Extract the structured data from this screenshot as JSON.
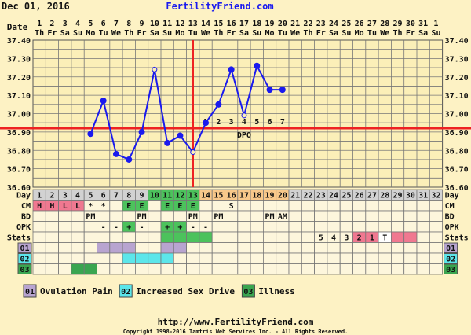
{
  "header": {
    "date": "Dec 01, 2016",
    "site": "FertilityFriend.com"
  },
  "footer": {
    "url": "http://www.FertilityFriend.com",
    "copyright": "Copyright 1998-2016 Tamtris Web Services Inc. - All Rights Reserved."
  },
  "colors": {
    "background": "#fdf2c4",
    "line": "#1a1aee",
    "coverline": "#ee2222",
    "ovulation_line": "#ee2222",
    "cm_red": "#f07890",
    "green": "#4cc25c",
    "follicular_day": "#d2d2d2",
    "luteal_day": "#f8c88a",
    "purple": "#b8a4d0",
    "cyan": "#5ce6ea",
    "dark_green": "#3aa550"
  },
  "chart_data": {
    "type": "line",
    "row_labels": {
      "date": "Date",
      "day": "Day",
      "cm": "CM",
      "bd": "BD",
      "opk": "OPK",
      "stats": "Stats"
    },
    "dates": [
      "1",
      "2",
      "3",
      "4",
      "5",
      "6",
      "7",
      "8",
      "9",
      "10",
      "11",
      "12",
      "13",
      "14",
      "15",
      "16",
      "17",
      "18",
      "19",
      "20",
      "21",
      "22",
      "23",
      "24",
      "25",
      "26",
      "27",
      "28",
      "29",
      "30",
      "31",
      "1"
    ],
    "weekdays": [
      "Th",
      "Fr",
      "Sa",
      "Su",
      "Mo",
      "Tu",
      "We",
      "Th",
      "Fr",
      "Sa",
      "Su",
      "Mo",
      "Tu",
      "We",
      "Th",
      "Fr",
      "Sa",
      "Su",
      "Mo",
      "Tu",
      "We",
      "Th",
      "Fr",
      "Sa",
      "Su",
      "Mo",
      "Tu",
      "We",
      "Th",
      "Fr",
      "Sa",
      "Su"
    ],
    "y_ticks": [
      "37.40",
      "37.30",
      "37.20",
      "37.10",
      "37.00",
      "36.90",
      "36.80",
      "36.70",
      "36.60"
    ],
    "ylim": [
      36.6,
      37.4
    ],
    "grid": true,
    "temperatures": [
      {
        "day": 5,
        "temp": 36.89
      },
      {
        "day": 6,
        "temp": 37.07
      },
      {
        "day": 7,
        "temp": 36.78
      },
      {
        "day": 8,
        "temp": 36.75
      },
      {
        "day": 9,
        "temp": 36.9
      },
      {
        "day": 10,
        "temp": 37.24,
        "open": true
      },
      {
        "day": 11,
        "temp": 36.84
      },
      {
        "day": 12,
        "temp": 36.88
      },
      {
        "day": 13,
        "temp": 36.79,
        "open": true
      },
      {
        "day": 14,
        "temp": 36.95
      },
      {
        "day": 15,
        "temp": 37.05
      },
      {
        "day": 16,
        "temp": 37.24
      },
      {
        "day": 17,
        "temp": 36.99,
        "open": true
      },
      {
        "day": 18,
        "temp": 37.26
      },
      {
        "day": 19,
        "temp": 37.13
      },
      {
        "day": 20,
        "temp": 37.13
      }
    ],
    "coverline": 36.92,
    "ovulation_day": 13,
    "dpo": {
      "label": "DPO",
      "start_day": 14,
      "values": [
        "1",
        "2",
        "3",
        "4",
        "5",
        "6",
        "7"
      ]
    },
    "cycle_days": 32,
    "fertile_days": [
      10,
      11,
      12,
      13
    ],
    "luteal_days": [
      14,
      15,
      16,
      17,
      18,
      19,
      20
    ],
    "cm": [
      {
        "day": 1,
        "v": "H",
        "c": "red"
      },
      {
        "day": 2,
        "v": "H",
        "c": "red"
      },
      {
        "day": 3,
        "v": "L",
        "c": "red"
      },
      {
        "day": 4,
        "v": "L",
        "c": "red"
      },
      {
        "day": 5,
        "v": "*"
      },
      {
        "day": 6,
        "v": "*"
      },
      {
        "day": 8,
        "v": "E",
        "c": "green"
      },
      {
        "day": 9,
        "v": "E",
        "c": "green"
      },
      {
        "day": 11,
        "v": "E",
        "c": "green"
      },
      {
        "day": 12,
        "v": "E",
        "c": "green"
      },
      {
        "day": 13,
        "v": "E",
        "c": "green"
      },
      {
        "day": 16,
        "v": "S"
      }
    ],
    "bd": [
      {
        "day": 5,
        "v": "PM"
      },
      {
        "day": 9,
        "v": "PM"
      },
      {
        "day": 13,
        "v": "PM"
      },
      {
        "day": 15,
        "v": "PM"
      },
      {
        "day": 19,
        "v": "PM"
      },
      {
        "day": 20,
        "v": "AM"
      }
    ],
    "opk": [
      {
        "day": 6,
        "v": "-"
      },
      {
        "day": 7,
        "v": "-"
      },
      {
        "day": 8,
        "v": "+",
        "c": "green"
      },
      {
        "day": 9,
        "v": "-"
      },
      {
        "day": 11,
        "v": "+",
        "c": "green"
      },
      {
        "day": 12,
        "v": "+",
        "c": "green"
      },
      {
        "day": 13,
        "v": "-"
      },
      {
        "day": 14,
        "v": "-"
      }
    ],
    "stats": [
      {
        "day": 11,
        "v": "",
        "c": "green"
      },
      {
        "day": 12,
        "v": "",
        "c": "green"
      },
      {
        "day": 13,
        "v": "",
        "c": "green"
      },
      {
        "day": 14,
        "v": "",
        "c": "green"
      },
      {
        "day": 23,
        "v": "5"
      },
      {
        "day": 24,
        "v": "4"
      },
      {
        "day": 25,
        "v": "3"
      },
      {
        "day": 26,
        "v": "2",
        "c": "red"
      },
      {
        "day": 27,
        "v": "1",
        "c": "red"
      },
      {
        "day": 28,
        "v": "T",
        "c": "white"
      },
      {
        "day": 29,
        "v": "",
        "c": "red"
      },
      {
        "day": 30,
        "v": "",
        "c": "red"
      }
    ],
    "custom_rows": [
      {
        "code": "01",
        "label": "Ovulation Pain",
        "color": "purple",
        "days": [
          6,
          7,
          8,
          11,
          12
        ]
      },
      {
        "code": "02",
        "label": "Increased Sex Drive",
        "color": "cyan",
        "days": [
          8,
          9,
          10,
          11
        ]
      },
      {
        "code": "03",
        "label": "Illness",
        "color": "dark_green",
        "days": [
          4,
          5
        ]
      }
    ]
  }
}
